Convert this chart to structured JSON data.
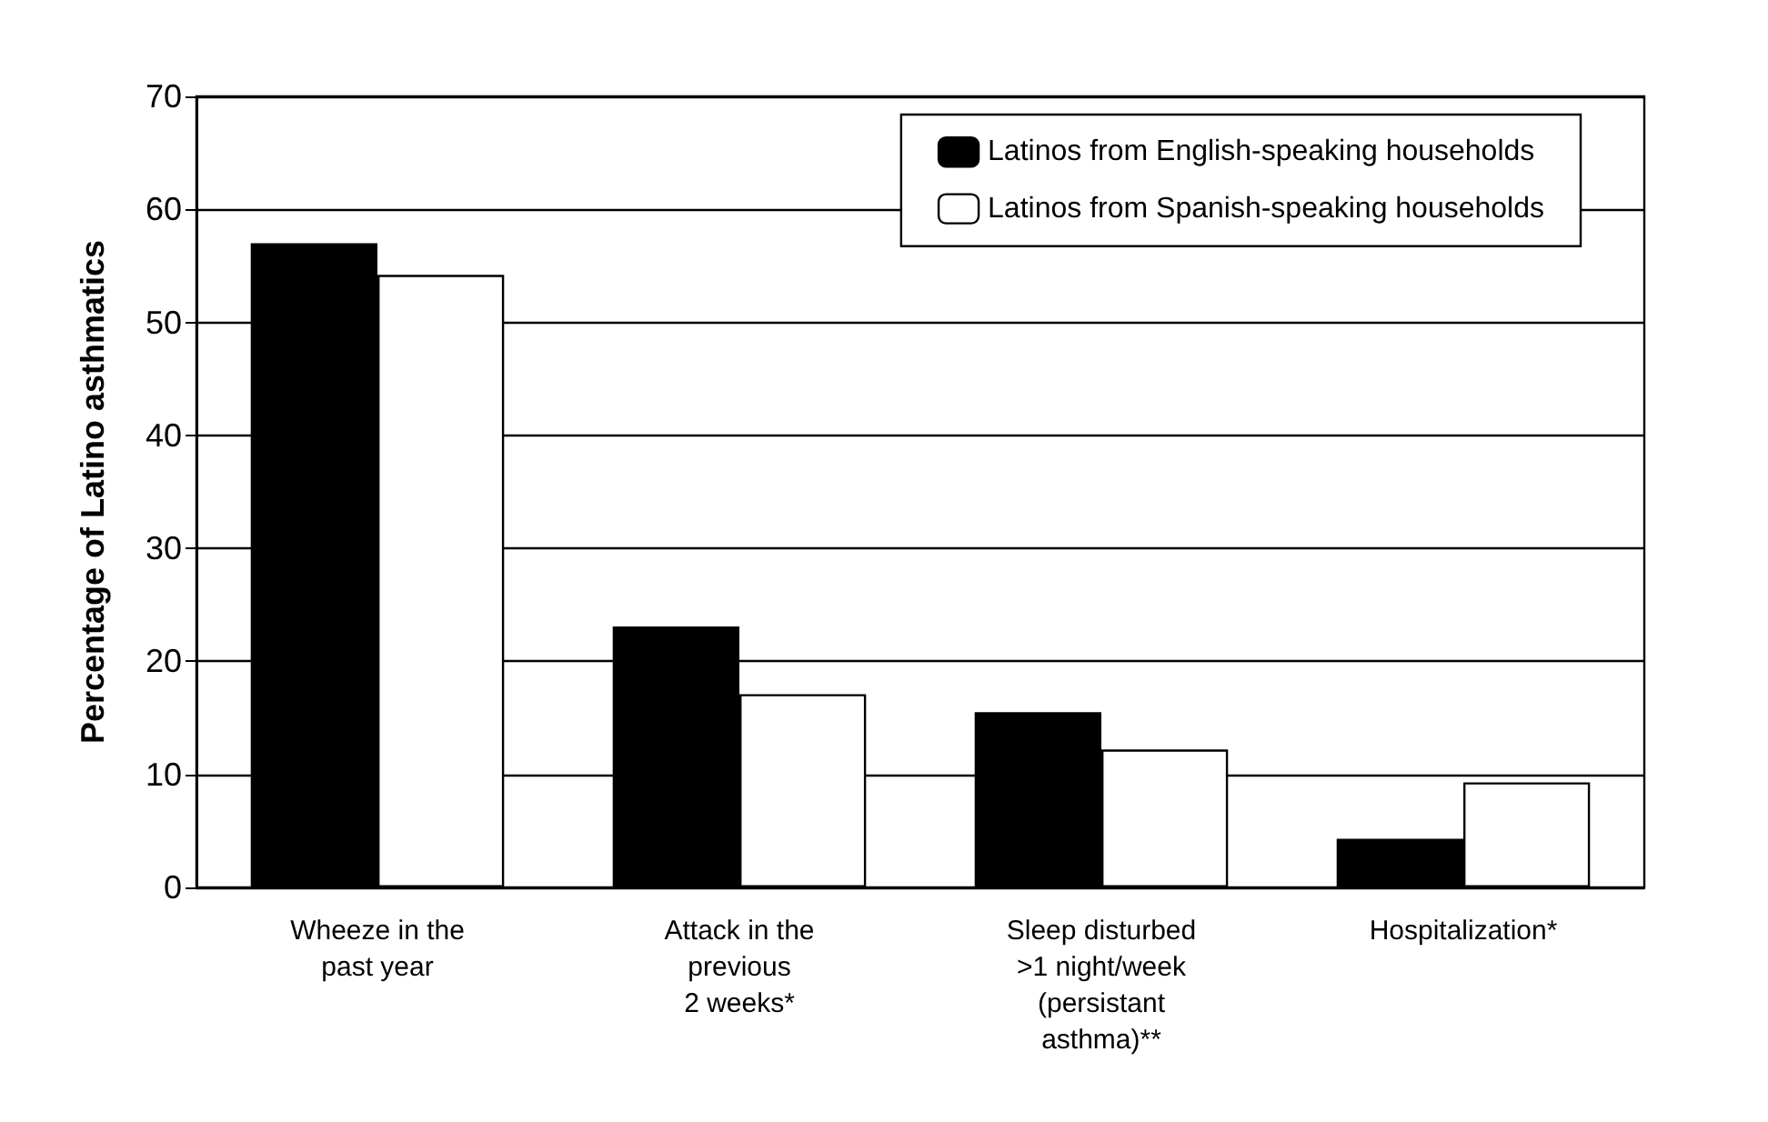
{
  "chart_data": {
    "type": "bar",
    "ylabel": "Percentage of Latino asthmatics",
    "categories": [
      "Wheeze in the\npast year",
      "Attack in the\nprevious\n2 weeks*",
      "Sleep disturbed\n>1 night/week\n(persistant\nasthma)**",
      "Hospitalization*"
    ],
    "series": [
      {
        "name": "Latinos from English-speaking households",
        "color": "#000000",
        "values": [
          57.0,
          23.1,
          15.5,
          4.3
        ]
      },
      {
        "name": "Latinos from Spanish-speaking households",
        "color": "#ffffff",
        "values": [
          54.2,
          17.1,
          12.2,
          9.3
        ]
      }
    ],
    "ylim": [
      0,
      70
    ],
    "yticks": [
      0,
      10,
      20,
      30,
      40,
      50,
      60,
      70
    ],
    "grid": "y",
    "legend": "top right"
  }
}
